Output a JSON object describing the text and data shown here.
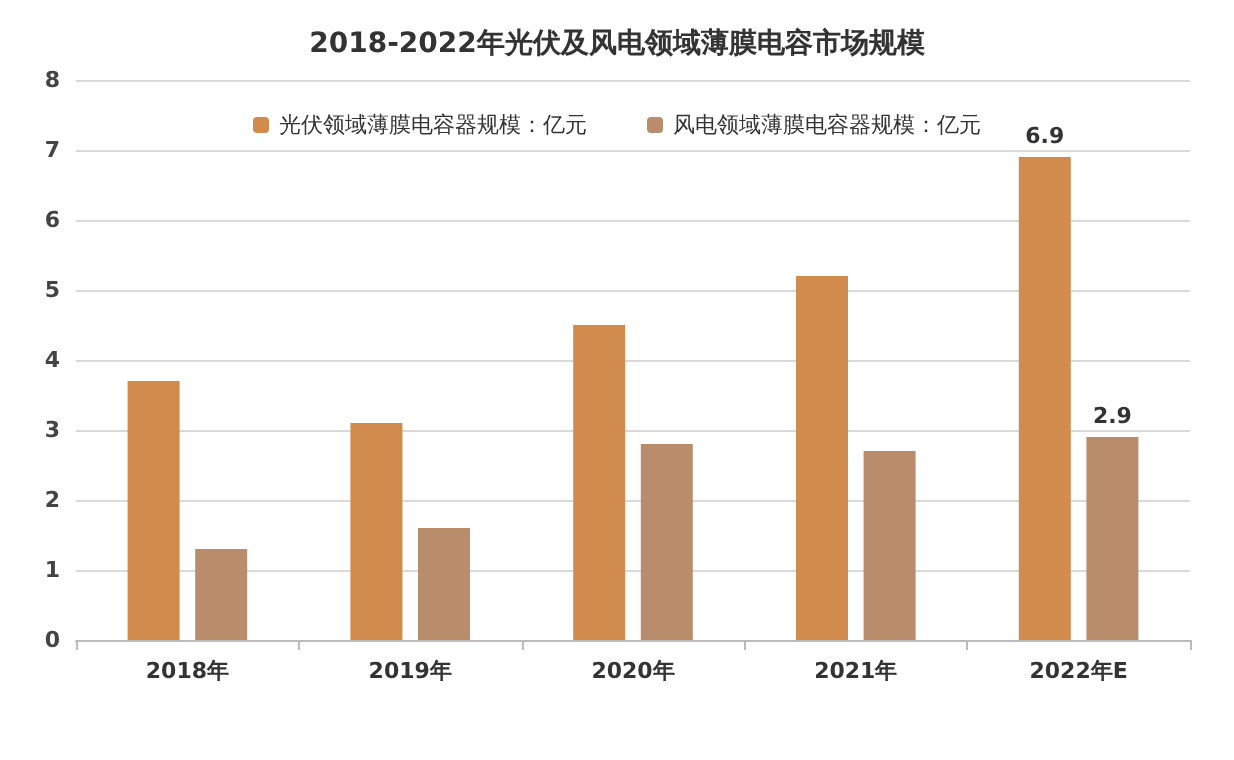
{
  "chart_data": {
    "type": "bar",
    "title": "2018-2022年光伏及风电领域薄膜电容市场规模",
    "categories": [
      "2018年",
      "2019年",
      "2020年",
      "2021年",
      "2022年E"
    ],
    "series": [
      {
        "name": "光伏领域薄膜电容器规模：亿元",
        "color": "#d18b4c",
        "values": [
          3.7,
          3.1,
          4.5,
          5.2,
          6.9
        ],
        "value_labels": [
          null,
          null,
          null,
          null,
          "6.9"
        ]
      },
      {
        "name": "风电领域薄膜电容器规模：亿元",
        "color": "#b98d6c",
        "values": [
          1.3,
          1.6,
          2.8,
          2.7,
          2.9
        ],
        "value_labels": [
          null,
          null,
          null,
          null,
          "2.9"
        ]
      }
    ],
    "ylim": [
      0,
      8
    ],
    "yticks": [
      0,
      1,
      2,
      3,
      4,
      5,
      6,
      7,
      8
    ],
    "grid": "y",
    "legend": "top"
  }
}
